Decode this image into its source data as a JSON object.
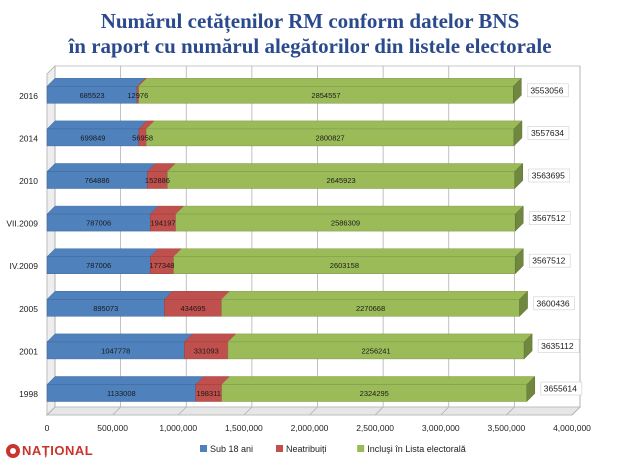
{
  "logo_text": "NAȚIONAL",
  "chart_data": {
    "type": "bar",
    "orientation": "horizontal",
    "stacked": true,
    "title": "Numărul cetățenilor RM conform datelor BNS",
    "subtitle": "în raport cu numărul alegătorilor din listele electorale",
    "categories": [
      "1998",
      "2001",
      "2005",
      "IV.2009",
      "VII.2009",
      "2010",
      "2014",
      "2016"
    ],
    "series": [
      {
        "name": "Sub 18 ani",
        "color": "#4f81bd",
        "values": [
          1133008,
          1047778,
          895073,
          787006,
          787006,
          764886,
          699849,
          685523
        ]
      },
      {
        "name": "Neatribuiți",
        "color": "#c0504d",
        "values": [
          198311,
          331093,
          434695,
          177348,
          194197,
          152886,
          56958,
          12976
        ]
      },
      {
        "name": "Incluşi în Lista electorală",
        "color": "#9bbb59",
        "values": [
          2324295,
          2256241,
          2270668,
          2603158,
          2586309,
          2645923,
          2800827,
          2854557
        ]
      }
    ],
    "totals": [
      3655614,
      3635112,
      3600436,
      3567512,
      3567512,
      3563695,
      3557634,
      3553056
    ],
    "xlim": [
      0,
      4000000
    ],
    "xticks": [
      "0",
      "500,000",
      "1,000,000",
      "1,500,000",
      "2,000,000",
      "2,500,000",
      "3,000,000",
      "3,500,000",
      "4,000,000"
    ],
    "grid": true,
    "legend_position": "bottom"
  }
}
